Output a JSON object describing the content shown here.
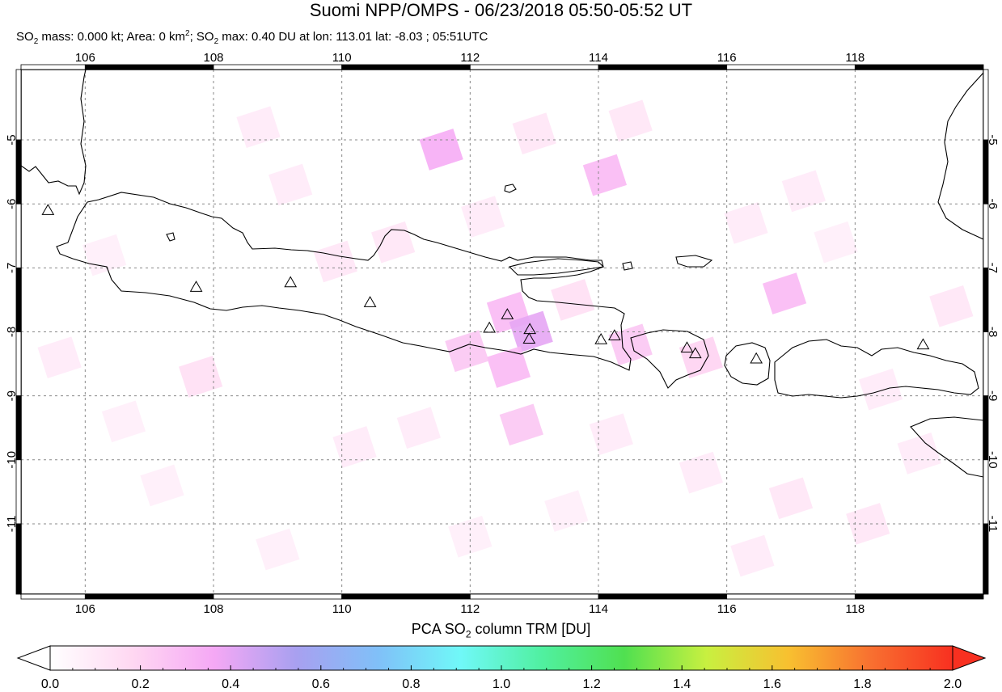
{
  "title": "Suomi NPP/OMPS - 06/23/2018 05:50-05:52 UT",
  "subtitle": {
    "part1": "SO",
    "sub1": "2",
    "part2": " mass: 0.000 kt; Area: 0 km",
    "sup1": "2",
    "part3": "; SO",
    "sub2": "2",
    "part4": " max: 0.40 DU at lon: 113.01 lat: -8.03 ; 05:51UTC"
  },
  "map": {
    "lon_range": [
      105,
      120
    ],
    "lat_range": [
      -12.1,
      -3.9
    ],
    "lon_ticks": [
      "106",
      "108",
      "110",
      "112",
      "114",
      "116",
      "118"
    ],
    "lat_ticks": [
      "-5",
      "-6",
      "-7",
      "-8",
      "-9",
      "-10",
      "-11"
    ],
    "volcanoes": [
      {
        "lon": 105.42,
        "lat": -6.1
      },
      {
        "lon": 107.73,
        "lat": -7.3
      },
      {
        "lon": 109.2,
        "lat": -7.23
      },
      {
        "lon": 110.44,
        "lat": -7.54
      },
      {
        "lon": 112.3,
        "lat": -7.94
      },
      {
        "lon": 112.58,
        "lat": -7.73
      },
      {
        "lon": 112.93,
        "lat": -7.96
      },
      {
        "lon": 112.92,
        "lat": -8.11
      },
      {
        "lon": 114.04,
        "lat": -8.12
      },
      {
        "lon": 114.25,
        "lat": -8.06
      },
      {
        "lon": 115.38,
        "lat": -8.25
      },
      {
        "lon": 115.51,
        "lat": -8.34
      },
      {
        "lon": 116.46,
        "lat": -8.42
      },
      {
        "lon": 119.06,
        "lat": -8.2
      }
    ],
    "so2_cells": [
      {
        "lon": 111.55,
        "lat": -5.15,
        "v": 0.35
      },
      {
        "lon": 114.1,
        "lat": -5.55,
        "v": 0.3
      },
      {
        "lon": 112.6,
        "lat": -7.7,
        "v": 0.3
      },
      {
        "lon": 112.95,
        "lat": -8.0,
        "v": 0.4
      },
      {
        "lon": 112.6,
        "lat": -8.55,
        "v": 0.3
      },
      {
        "lon": 111.95,
        "lat": -8.3,
        "v": 0.25
      },
      {
        "lon": 112.8,
        "lat": -9.45,
        "v": 0.25
      },
      {
        "lon": 116.9,
        "lat": -7.4,
        "v": 0.3
      },
      {
        "lon": 114.5,
        "lat": -8.2,
        "v": 0.25
      },
      {
        "lon": 115.6,
        "lat": -8.4,
        "v": 0.2
      },
      {
        "lon": 107.8,
        "lat": -8.7,
        "v": 0.15
      },
      {
        "lon": 109.9,
        "lat": -6.9,
        "v": 0.12
      },
      {
        "lon": 110.8,
        "lat": -6.6,
        "v": 0.12
      },
      {
        "lon": 113.6,
        "lat": -7.5,
        "v": 0.15
      },
      {
        "lon": 113.0,
        "lat": -4.9,
        "v": 0.12
      },
      {
        "lon": 109.2,
        "lat": -5.7,
        "v": 0.1
      },
      {
        "lon": 108.7,
        "lat": -4.8,
        "v": 0.1
      },
      {
        "lon": 114.5,
        "lat": -4.7,
        "v": 0.12
      },
      {
        "lon": 116.3,
        "lat": -6.3,
        "v": 0.1
      },
      {
        "lon": 117.2,
        "lat": -5.8,
        "v": 0.1
      },
      {
        "lon": 119.5,
        "lat": -7.6,
        "v": 0.12
      },
      {
        "lon": 105.6,
        "lat": -8.4,
        "v": 0.1
      },
      {
        "lon": 106.6,
        "lat": -9.4,
        "v": 0.08
      },
      {
        "lon": 110.2,
        "lat": -9.8,
        "v": 0.1
      },
      {
        "lon": 111.2,
        "lat": -9.5,
        "v": 0.1
      },
      {
        "lon": 114.2,
        "lat": -9.6,
        "v": 0.1
      },
      {
        "lon": 115.6,
        "lat": -10.2,
        "v": 0.1
      },
      {
        "lon": 117.0,
        "lat": -10.6,
        "v": 0.12
      },
      {
        "lon": 118.2,
        "lat": -11.0,
        "v": 0.12
      },
      {
        "lon": 119.0,
        "lat": -9.9,
        "v": 0.1
      },
      {
        "lon": 107.2,
        "lat": -10.4,
        "v": 0.08
      },
      {
        "lon": 109.0,
        "lat": -11.4,
        "v": 0.08
      },
      {
        "lon": 112.0,
        "lat": -11.2,
        "v": 0.08
      },
      {
        "lon": 116.4,
        "lat": -11.5,
        "v": 0.1
      },
      {
        "lon": 113.5,
        "lat": -10.8,
        "v": 0.08
      },
      {
        "lon": 106.3,
        "lat": -6.8,
        "v": 0.08
      },
      {
        "lon": 112.2,
        "lat": -6.2,
        "v": 0.1
      },
      {
        "lon": 118.4,
        "lat": -8.9,
        "v": 0.1
      },
      {
        "lon": 117.7,
        "lat": -6.6,
        "v": 0.08
      }
    ]
  },
  "colorbar": {
    "title_part1": "PCA SO",
    "title_sub": "2",
    "title_part2": " column TRM [DU]",
    "ticks": [
      "0.0",
      "0.2",
      "0.4",
      "0.6",
      "0.8",
      "1.0",
      "1.2",
      "1.4",
      "1.6",
      "1.8",
      "2.0"
    ],
    "stops": [
      "#ffffff",
      "#ffd8f2",
      "#f5a8f5",
      "#a8a0f0",
      "#80c0f8",
      "#70f8f8",
      "#50f0a0",
      "#50e050",
      "#c8f040",
      "#f8c030",
      "#f87030",
      "#f83020"
    ]
  }
}
